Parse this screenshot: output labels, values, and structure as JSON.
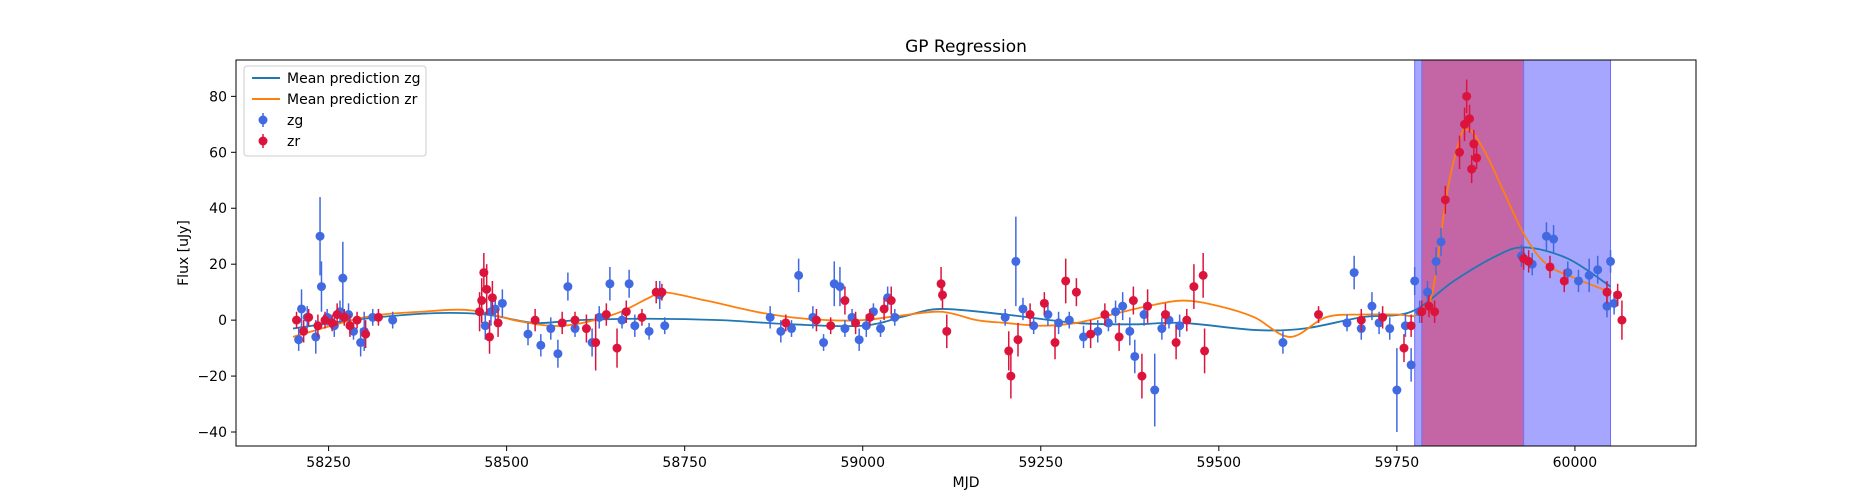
{
  "chart_data": {
    "type": "scatter",
    "title": "GP Regression",
    "xlabel": "MJD",
    "ylabel": "Flux [uJy]",
    "xlim": [
      58120,
      60170
    ],
    "ylim": [
      -45,
      93
    ],
    "xticks": [
      58250,
      58500,
      58750,
      59000,
      59250,
      59500,
      59750,
      60000
    ],
    "yticks": [
      -40,
      -20,
      0,
      20,
      40,
      60,
      80
    ],
    "legend_position": "upper-left",
    "shaded_regions": [
      {
        "x0": 59775,
        "x1": 60050,
        "color": "#a6a6ff"
      },
      {
        "x0": 59785,
        "x1": 59928,
        "color": "#c466a6"
      }
    ],
    "series": [
      {
        "name": "Mean prediction zg",
        "kind": "line",
        "color": "#1f77b4",
        "x": [
          58200,
          58300,
          58400,
          58470,
          58540,
          58600,
          58700,
          58800,
          58900,
          59000,
          59060,
          59110,
          59200,
          59300,
          59380,
          59450,
          59550,
          59620,
          59700,
          59770,
          59830,
          59890,
          59930,
          59990,
          60050
        ],
        "y": [
          -3,
          0.5,
          2.5,
          2,
          -1,
          0,
          0.5,
          0,
          -1.5,
          -2,
          1.5,
          4,
          2,
          -1,
          -1.5,
          -1,
          -3.5,
          -3,
          1,
          3,
          14,
          23,
          26,
          22,
          12
        ]
      },
      {
        "name": "Mean prediction zr",
        "kind": "line",
        "color": "#ff7f0e",
        "x": [
          58200,
          58300,
          58380,
          58450,
          58520,
          58580,
          58650,
          58700,
          58720,
          58780,
          58850,
          58900,
          58950,
          59000,
          59050,
          59110,
          59160,
          59200,
          59250,
          59300,
          59350,
          59400,
          59450,
          59500,
          59550,
          59600,
          59650,
          59700,
          59750,
          59780,
          59800,
          59820,
          59840,
          59850,
          59860,
          59880,
          59900,
          59930,
          59960,
          60000,
          60050
        ],
        "y": [
          -6,
          1,
          3,
          3.5,
          -0.5,
          -2,
          2,
          8,
          10,
          7,
          3,
          1,
          0,
          0,
          1.5,
          3,
          0,
          -1,
          -2,
          -1,
          2,
          5,
          7,
          5,
          1,
          -6,
          1,
          2,
          2,
          2,
          10,
          45,
          66,
          68,
          66,
          57,
          46,
          30,
          20,
          15,
          10
        ]
      },
      {
        "name": "zg",
        "kind": "errorbar",
        "color": "#4169e1",
        "points": [
          [
            58208,
            -7,
            4
          ],
          [
            58212,
            4,
            7
          ],
          [
            58220,
            1,
            4
          ],
          [
            58232,
            -6,
            6
          ],
          [
            58238,
            30,
            14
          ],
          [
            58240,
            12,
            9
          ],
          [
            58248,
            1,
            3
          ],
          [
            58258,
            -2,
            4
          ],
          [
            58266,
            3,
            4
          ],
          [
            58270,
            15,
            13
          ],
          [
            58278,
            2,
            4
          ],
          [
            58285,
            -4,
            3
          ],
          [
            58295,
            -8,
            5
          ],
          [
            58300,
            -4,
            7
          ],
          [
            58312,
            1,
            3
          ],
          [
            58340,
            0,
            3
          ],
          [
            58470,
            -2,
            5
          ],
          [
            58478,
            3,
            5
          ],
          [
            58484,
            4,
            4
          ],
          [
            58494,
            6,
            5
          ],
          [
            58530,
            -5,
            4
          ],
          [
            58548,
            -9,
            4
          ],
          [
            58562,
            -3,
            4
          ],
          [
            58572,
            -12,
            5
          ],
          [
            58586,
            12,
            5
          ],
          [
            58596,
            -3,
            3
          ],
          [
            58620,
            -8,
            5
          ],
          [
            58630,
            1,
            4
          ],
          [
            58645,
            13,
            6
          ],
          [
            58662,
            0,
            3
          ],
          [
            58672,
            13,
            5
          ],
          [
            58680,
            -2,
            4
          ],
          [
            58700,
            -4,
            3
          ],
          [
            58715,
            9,
            5
          ],
          [
            58722,
            -2,
            3
          ],
          [
            58870,
            1,
            4
          ],
          [
            58885,
            -4,
            4
          ],
          [
            58900,
            -3,
            3
          ],
          [
            58910,
            16,
            6
          ],
          [
            58930,
            1,
            4
          ],
          [
            58945,
            -8,
            3
          ],
          [
            58960,
            13,
            8
          ],
          [
            58968,
            12,
            7
          ],
          [
            58975,
            -3,
            3
          ],
          [
            58985,
            1,
            3
          ],
          [
            58995,
            -7,
            4
          ],
          [
            59005,
            -2,
            4
          ],
          [
            59015,
            3,
            3
          ],
          [
            59025,
            -3,
            3
          ],
          [
            59035,
            8,
            4
          ],
          [
            59045,
            1,
            3
          ],
          [
            59200,
            1,
            3
          ],
          [
            59215,
            21,
            16
          ],
          [
            59225,
            4,
            4
          ],
          [
            59240,
            -2,
            3
          ],
          [
            59260,
            2,
            4
          ],
          [
            59275,
            -1,
            4
          ],
          [
            59290,
            0,
            3
          ],
          [
            59310,
            -6,
            4
          ],
          [
            59330,
            -4,
            4
          ],
          [
            59345,
            -1,
            3
          ],
          [
            59355,
            3,
            4
          ],
          [
            59365,
            5,
            5
          ],
          [
            59375,
            -4,
            5
          ],
          [
            59382,
            -13,
            6
          ],
          [
            59395,
            2,
            4
          ],
          [
            59410,
            -25,
            13
          ],
          [
            59420,
            -3,
            4
          ],
          [
            59430,
            0,
            3
          ],
          [
            59445,
            -2,
            4
          ],
          [
            59590,
            -8,
            4
          ],
          [
            59680,
            -1,
            3
          ],
          [
            59690,
            17,
            6
          ],
          [
            59700,
            -3,
            4
          ],
          [
            59715,
            5,
            5
          ],
          [
            59725,
            -1,
            4
          ],
          [
            59740,
            -3,
            4
          ],
          [
            59750,
            -25,
            15
          ],
          [
            59762,
            -2,
            4
          ],
          [
            59770,
            -16,
            6
          ],
          [
            59775,
            14,
            5
          ],
          [
            59782,
            3,
            4
          ],
          [
            59793,
            10,
            4
          ],
          [
            59805,
            21,
            5
          ],
          [
            59812,
            28,
            5
          ],
          [
            59925,
            23,
            4
          ],
          [
            59940,
            20,
            4
          ],
          [
            59960,
            30,
            5
          ],
          [
            59970,
            29,
            5
          ],
          [
            59990,
            17,
            4
          ],
          [
            60005,
            14,
            4
          ],
          [
            60020,
            16,
            6
          ],
          [
            60032,
            18,
            5
          ],
          [
            60045,
            5,
            4
          ],
          [
            60050,
            21,
            4
          ],
          [
            60055,
            6,
            4
          ]
        ]
      },
      {
        "name": "zr",
        "kind": "errorbar",
        "color": "#dc143c",
        "points": [
          [
            58205,
            0,
            3
          ],
          [
            58215,
            -4,
            4
          ],
          [
            58222,
            1,
            3
          ],
          [
            58235,
            -2,
            4
          ],
          [
            58245,
            0,
            3
          ],
          [
            58255,
            -1,
            3
          ],
          [
            58262,
            2,
            4
          ],
          [
            58272,
            1,
            3
          ],
          [
            58280,
            -2,
            4
          ],
          [
            58290,
            0,
            3
          ],
          [
            58302,
            -5,
            5
          ],
          [
            58320,
            1,
            3
          ],
          [
            58462,
            3,
            7
          ],
          [
            58465,
            7,
            8
          ],
          [
            58468,
            17,
            7
          ],
          [
            58472,
            11,
            9
          ],
          [
            58476,
            -6,
            6
          ],
          [
            58480,
            8,
            6
          ],
          [
            58488,
            -1,
            5
          ],
          [
            58540,
            0,
            4
          ],
          [
            58578,
            -1,
            4
          ],
          [
            58596,
            0,
            3
          ],
          [
            58612,
            -3,
            5
          ],
          [
            58625,
            -8,
            10
          ],
          [
            58640,
            2,
            4
          ],
          [
            58655,
            -10,
            7
          ],
          [
            58668,
            3,
            4
          ],
          [
            58690,
            1,
            3
          ],
          [
            58710,
            10,
            4
          ],
          [
            58718,
            10,
            3
          ],
          [
            58892,
            -1,
            3
          ],
          [
            58935,
            0,
            4
          ],
          [
            58955,
            -2,
            3
          ],
          [
            58975,
            7,
            5
          ],
          [
            58990,
            -1,
            4
          ],
          [
            59010,
            1,
            3
          ],
          [
            59030,
            4,
            4
          ],
          [
            59040,
            7,
            5
          ],
          [
            59110,
            13,
            6
          ],
          [
            59112,
            9,
            5
          ],
          [
            59118,
            -4,
            6
          ],
          [
            59205,
            -11,
            7
          ],
          [
            59208,
            -20,
            8
          ],
          [
            59218,
            -7,
            6
          ],
          [
            59235,
            2,
            4
          ],
          [
            59255,
            6,
            4
          ],
          [
            59270,
            -8,
            6
          ],
          [
            59285,
            14,
            8
          ],
          [
            59300,
            10,
            5
          ],
          [
            59320,
            -5,
            5
          ],
          [
            59340,
            2,
            4
          ],
          [
            59360,
            -6,
            5
          ],
          [
            59380,
            7,
            5
          ],
          [
            59392,
            -20,
            8
          ],
          [
            59400,
            5,
            6
          ],
          [
            59425,
            2,
            4
          ],
          [
            59440,
            -8,
            6
          ],
          [
            59455,
            0,
            4
          ],
          [
            59465,
            12,
            8
          ],
          [
            59478,
            16,
            8
          ],
          [
            59480,
            -11,
            8
          ],
          [
            59640,
            2,
            3
          ],
          [
            59700,
            0,
            4
          ],
          [
            59730,
            1,
            4
          ],
          [
            59760,
            -10,
            5
          ],
          [
            59770,
            -2,
            4
          ],
          [
            59785,
            3,
            4
          ],
          [
            59795,
            5,
            4
          ],
          [
            59803,
            3,
            4
          ],
          [
            59818,
            43,
            5
          ],
          [
            59838,
            60,
            6
          ],
          [
            59845,
            70,
            6
          ],
          [
            59848,
            80,
            6
          ],
          [
            59852,
            72,
            5
          ],
          [
            59858,
            63,
            5
          ],
          [
            59862,
            58,
            4
          ],
          [
            59855,
            54,
            5
          ],
          [
            59928,
            22,
            4
          ],
          [
            59935,
            21,
            4
          ],
          [
            59965,
            19,
            4
          ],
          [
            59985,
            14,
            4
          ],
          [
            60045,
            10,
            4
          ],
          [
            60060,
            9,
            4
          ],
          [
            60066,
            0,
            7
          ]
        ]
      }
    ]
  }
}
